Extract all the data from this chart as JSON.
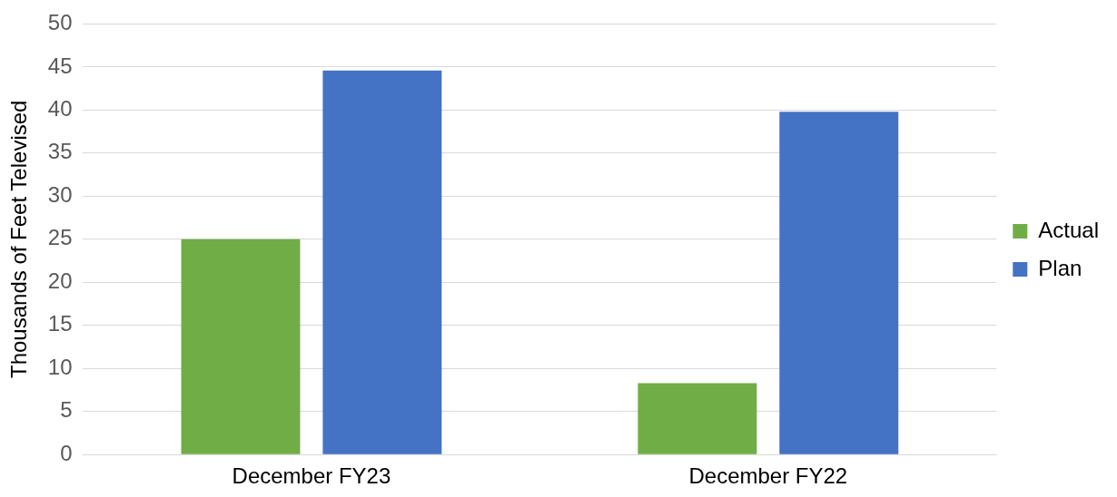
{
  "chart_data": {
    "type": "bar",
    "ylabel": "Thousands of Feet Televised",
    "categories": [
      "December FY23",
      "December FY22"
    ],
    "series": [
      {
        "name": "Actual",
        "color": "#70ad47",
        "values": [
          25,
          8.3
        ]
      },
      {
        "name": "Plan",
        "color": "#4472c4",
        "values": [
          44.6,
          39.8
        ]
      }
    ],
    "ylim": [
      0,
      50
    ],
    "yticks": [
      0,
      5,
      10,
      15,
      20,
      25,
      30,
      35,
      40,
      45,
      50
    ],
    "grid": "y",
    "legend": "right"
  }
}
